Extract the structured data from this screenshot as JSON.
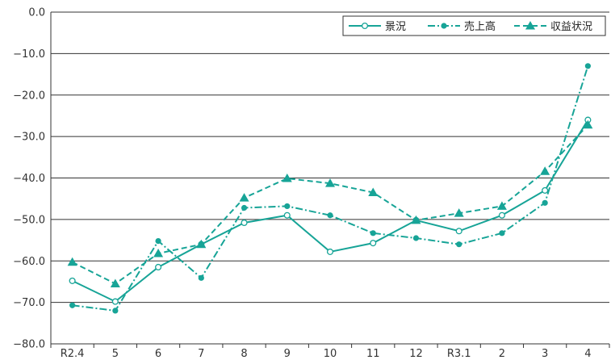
{
  "colors": {
    "series": "#17a497",
    "grid": "#333333",
    "axis": "#333333",
    "text": "#333333"
  },
  "chart_data": {
    "type": "line",
    "categories": [
      "R2.4",
      "5",
      "6",
      "7",
      "8",
      "9",
      "10",
      "11",
      "12",
      "R3.1",
      "2",
      "3",
      "4"
    ],
    "ylim": [
      -80,
      0
    ],
    "yticks": [
      "0.0",
      "-10.0",
      "-20.0",
      "-30.0",
      "-40.0",
      "-50.0",
      "-60.0",
      "-70.0",
      "-80.0"
    ],
    "grid": true,
    "legend": "top-right",
    "series": [
      {
        "name": "景況",
        "marker": "open-circle",
        "dash": "solid",
        "values": [
          -64.8,
          -69.8,
          -61.5,
          -56.0,
          -50.8,
          -49.0,
          -57.8,
          -55.7,
          -50.2,
          -52.8,
          -49.0,
          -43.0,
          -26.0
        ]
      },
      {
        "name": "売上高",
        "marker": "filled-circle",
        "dash": "dash-dot",
        "values": [
          -70.7,
          -72.0,
          -55.2,
          -64.1,
          -47.2,
          -46.8,
          -49.0,
          -53.3,
          -54.5,
          -56.0,
          -53.3,
          -46.0,
          -13.0
        ]
      },
      {
        "name": "収益状況",
        "marker": "triangle",
        "dash": "dashed",
        "values": [
          -60.3,
          -65.5,
          -58.2,
          -56.0,
          -44.8,
          -40.1,
          -41.3,
          -43.5,
          -50.2,
          -48.5,
          -46.8,
          -38.4,
          -27.2
        ]
      }
    ]
  }
}
